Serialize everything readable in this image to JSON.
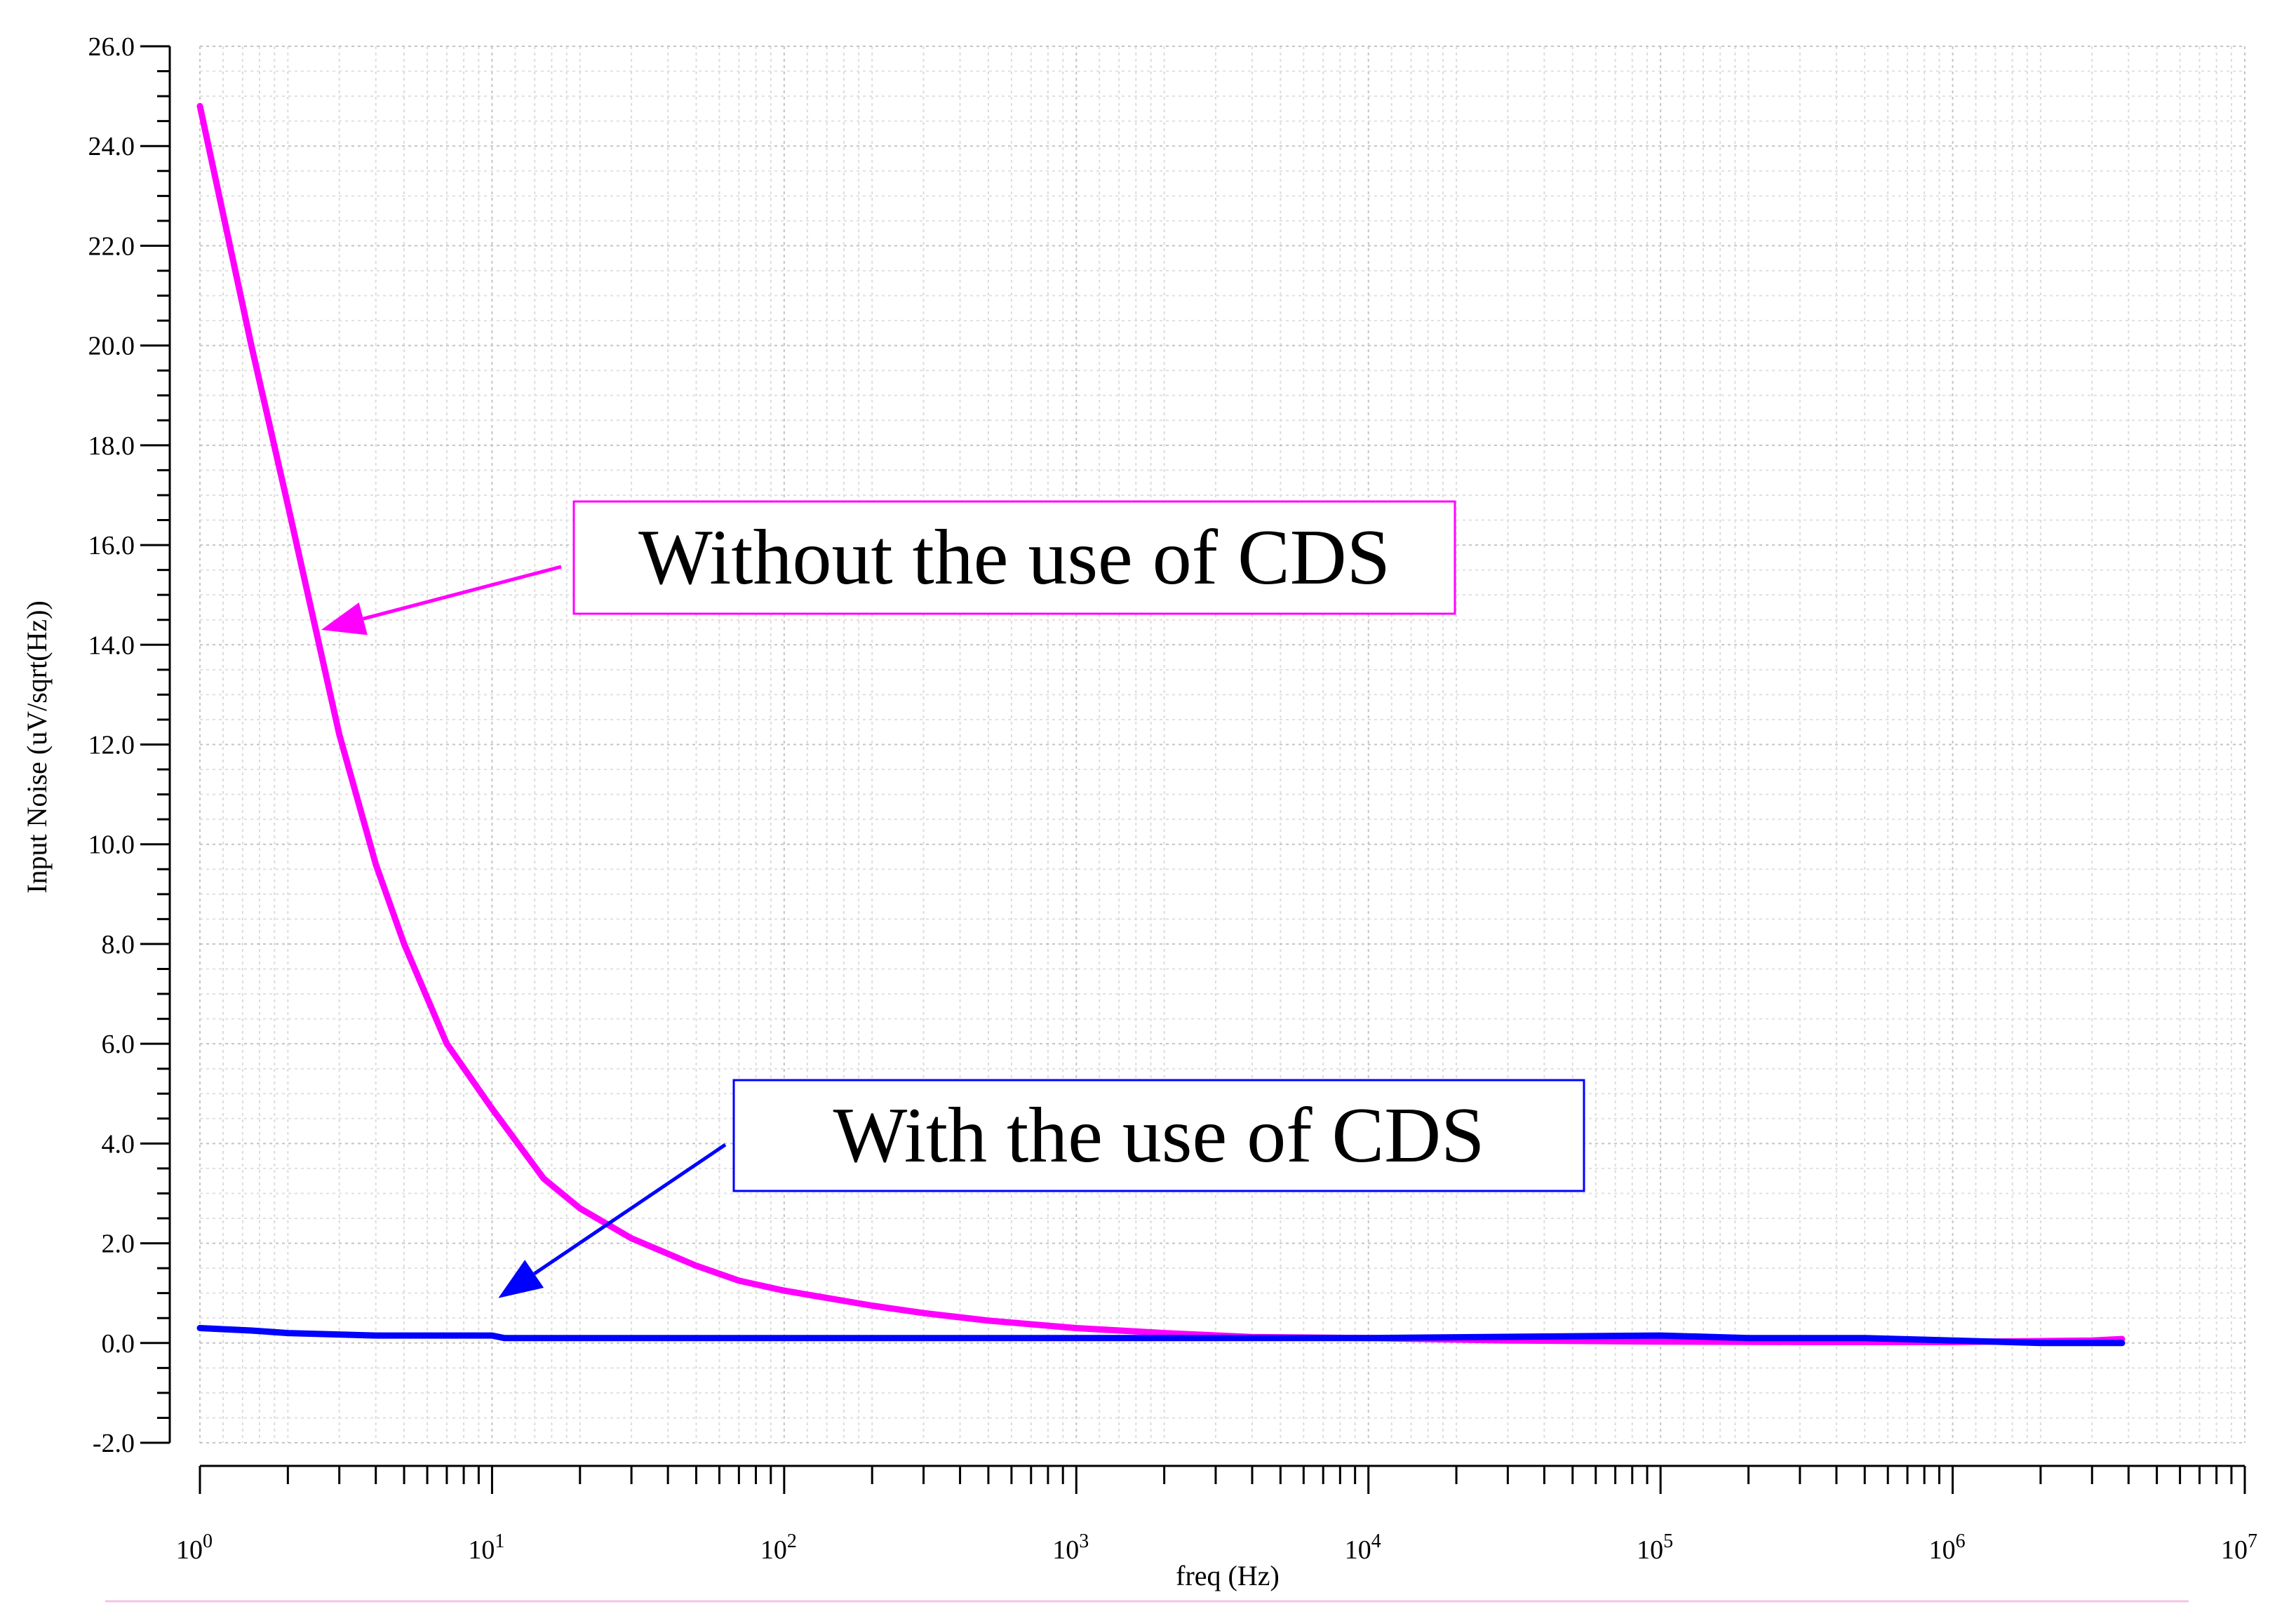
{
  "chart_data": {
    "type": "line",
    "title": "",
    "xlabel": "freq (Hz)",
    "ylabel": "Input Noise (uV/sqrt(Hz))",
    "x_scale": "log",
    "xlim": [
      1,
      10000000
    ],
    "ylim": [
      -2.0,
      26.0
    ],
    "grid": true,
    "y_ticks": [
      "-2.0",
      "0.0",
      "2.0",
      "4.0",
      "6.0",
      "8.0",
      "10.0",
      "12.0",
      "14.0",
      "16.0",
      "18.0",
      "20.0",
      "22.0",
      "24.0",
      "26.0"
    ],
    "x_ticks": [
      {
        "base": "10",
        "exp": "0"
      },
      {
        "base": "10",
        "exp": "1"
      },
      {
        "base": "10",
        "exp": "2"
      },
      {
        "base": "10",
        "exp": "3"
      },
      {
        "base": "10",
        "exp": "4"
      },
      {
        "base": "10",
        "exp": "5"
      },
      {
        "base": "10",
        "exp": "6"
      },
      {
        "base": "10",
        "exp": "7"
      }
    ],
    "series": [
      {
        "name": "Without the use of CDS",
        "color": "#ff00ff",
        "x": [
          1,
          1.5,
          2,
          3,
          4,
          5,
          7,
          10,
          15,
          20,
          30,
          50,
          70,
          100,
          200,
          300,
          500,
          1000,
          2000,
          4000,
          10000,
          30000,
          100000,
          300000,
          1000000,
          3000000,
          3800000
        ],
        "y": [
          24.8,
          20.0,
          16.8,
          12.2,
          9.6,
          8.0,
          6.0,
          4.7,
          3.3,
          2.7,
          2.1,
          1.55,
          1.25,
          1.05,
          0.75,
          0.6,
          0.45,
          0.3,
          0.2,
          0.12,
          0.1,
          0.05,
          0.03,
          0.02,
          0.02,
          0.05,
          0.08
        ]
      },
      {
        "name": "With the use of CDS",
        "color": "#0000ff",
        "x": [
          1,
          1.5,
          2,
          4,
          10,
          11,
          100,
          1000,
          4000,
          10000,
          100000,
          200000,
          500000,
          1000000,
          2000000,
          3800000
        ],
        "y": [
          0.3,
          0.25,
          0.2,
          0.15,
          0.15,
          0.1,
          0.1,
          0.1,
          0.1,
          0.1,
          0.15,
          0.1,
          0.1,
          0.05,
          0.0,
          0.0
        ]
      }
    ],
    "annotations": [
      {
        "text": "Without the use of CDS",
        "color": "#ff00ff",
        "arrow_to": {
          "x": 2.6,
          "y": 14.3
        }
      },
      {
        "text": "With the use of CDS",
        "color": "#0000ff",
        "arrow_to": {
          "x": 10.5,
          "y": 0.9
        }
      }
    ]
  }
}
